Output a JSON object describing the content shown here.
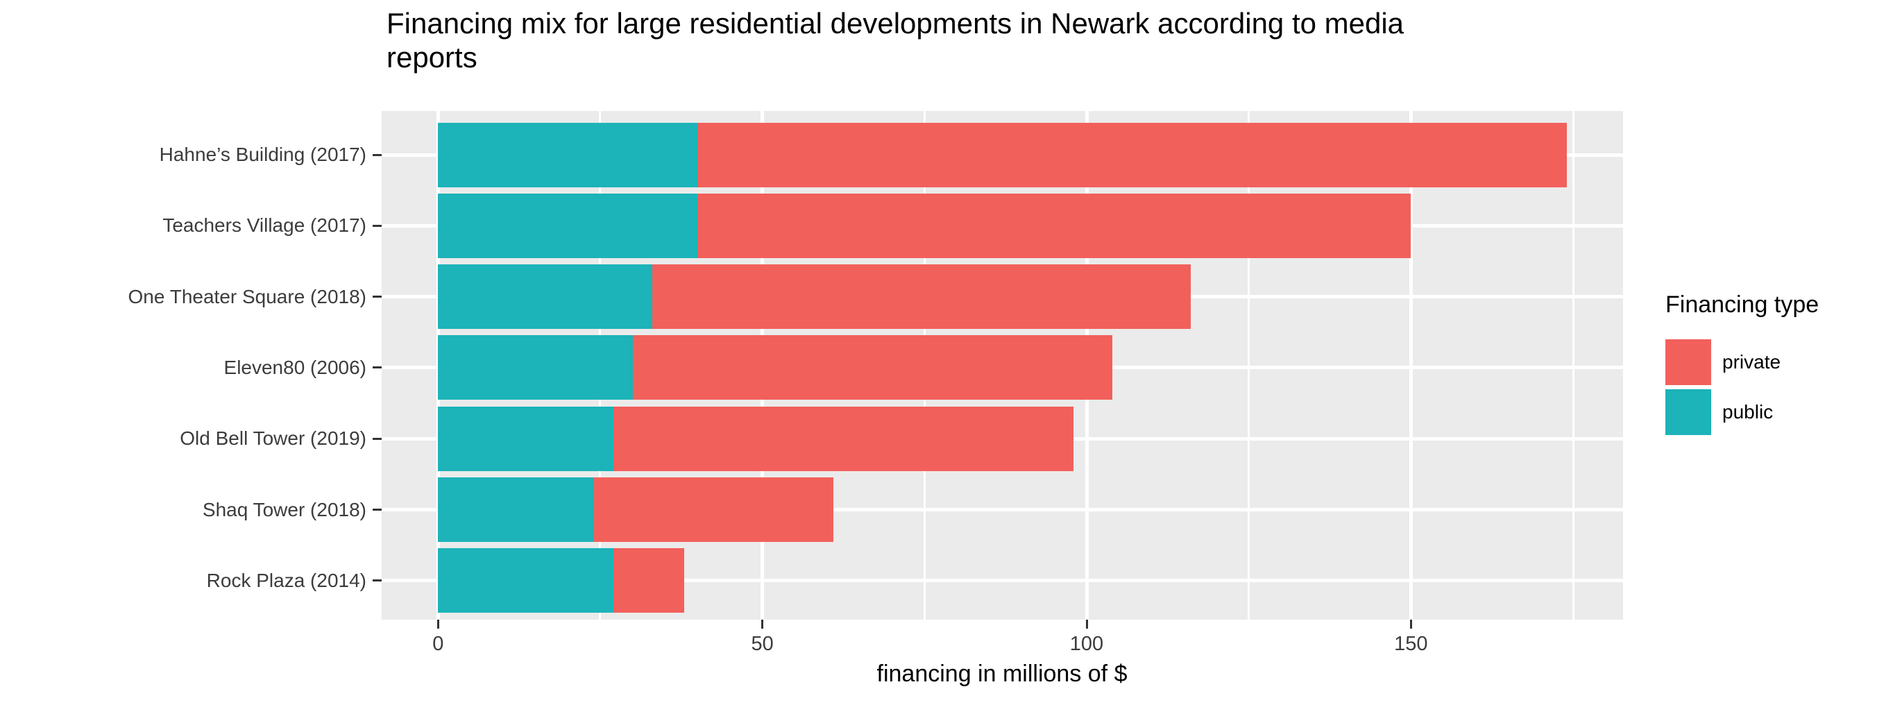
{
  "chart_data": {
    "type": "bar",
    "orientation": "horizontal",
    "stacked": true,
    "title": "Financing mix for large residential developments in Newark according to media reports",
    "xlabel": "financing in millions of $",
    "ylabel": "",
    "categories": [
      "Hahne’s Building (2017)",
      "Teachers Village (2017)",
      "One Theater Square (2018)",
      "Eleven80 (2006)",
      "Old Bell Tower (2019)",
      "Shaq Tower (2018)",
      "Rock Plaza (2014)"
    ],
    "series": [
      {
        "name": "public",
        "color": "#1CB3B9",
        "values": [
          40,
          40,
          33,
          30,
          27,
          24,
          27
        ]
      },
      {
        "name": "private",
        "color": "#F2605B",
        "values": [
          134,
          110,
          83,
          74,
          71,
          37,
          11
        ]
      }
    ],
    "totals": [
      174,
      150,
      116,
      104,
      98,
      61,
      38
    ],
    "xlim": [
      -8.7,
      182.7
    ],
    "x_major_ticks": [
      0,
      50,
      100,
      150
    ],
    "x_minor_ticks": [
      25,
      75,
      125,
      175
    ],
    "grid": true,
    "panel_bg": "#EBEBEB",
    "grid_color": "#FFFFFF",
    "tick_color": "#333333",
    "legend": {
      "title": "Financing type",
      "position": "right",
      "entries": [
        {
          "label": "private",
          "color": "#F2605B"
        },
        {
          "label": "public",
          "color": "#1CB3B9"
        }
      ]
    }
  }
}
